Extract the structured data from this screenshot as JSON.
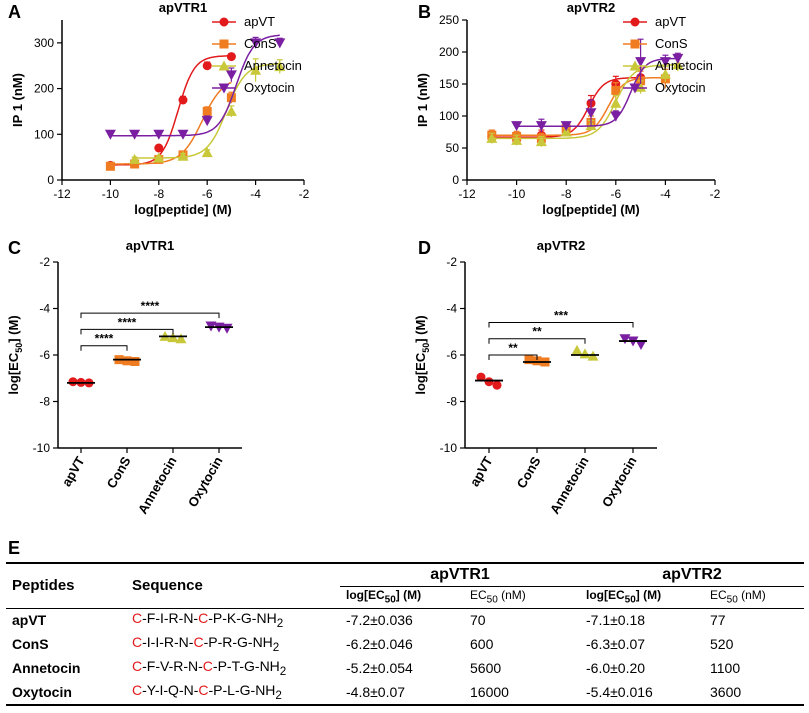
{
  "colors": {
    "apVT": "#e31a1c",
    "ConS": "#f07c22",
    "Annetocin": "#c8c83a",
    "Oxytocin": "#7b1fa2",
    "cys": "#e31a1c"
  },
  "panel_labels": [
    "A",
    "B",
    "C",
    "D",
    "E"
  ],
  "chart_data": [
    {
      "id": "A",
      "type": "scatter",
      "title": "apVTR1",
      "xlabel": "log[peptide] (M)",
      "ylabel": "IP 1 (nM)",
      "xlim": [
        -12,
        -2
      ],
      "ylim": [
        0,
        350
      ],
      "xticks": [
        -12,
        -10,
        -8,
        -6,
        -4,
        -2
      ],
      "yticks": [
        0,
        100,
        200,
        300
      ],
      "xtick_labels": [
        "-12",
        "-10",
        "-8",
        "-6",
        "-4",
        "-2"
      ],
      "ytick_labels": [
        "0",
        "100",
        "200",
        "300"
      ],
      "legend": [
        "apVT",
        "ConS",
        "Annetocin",
        "Oxytocin"
      ],
      "series": [
        {
          "name": "apVT",
          "marker": "circle",
          "x": [
            -10,
            -9,
            -8,
            -7,
            -6,
            -5
          ],
          "y": [
            32,
            38,
            70,
            175,
            250,
            270
          ],
          "err": [
            5,
            4,
            6,
            8,
            8,
            6
          ],
          "fit": {
            "bottom": 33,
            "top": 272,
            "ec50": -7.2,
            "hill": 1.3
          }
        },
        {
          "name": "ConS",
          "marker": "square",
          "x": [
            -10,
            -9,
            -8,
            -7,
            -6,
            -5
          ],
          "y": [
            30,
            35,
            45,
            55,
            150,
            180
          ],
          "err": [
            4,
            4,
            5,
            6,
            10,
            12
          ],
          "fit": {
            "bottom": 35,
            "top": 225,
            "ec50": -6.2,
            "hill": 1.0
          }
        },
        {
          "name": "Annetocin",
          "marker": "triangle-up",
          "x": [
            -9,
            -8,
            -7,
            -6,
            -5,
            -4,
            -3
          ],
          "y": [
            45,
            48,
            52,
            60,
            150,
            240,
            248
          ],
          "err": [
            5,
            5,
            6,
            6,
            12,
            25,
            15
          ],
          "fit": {
            "bottom": 48,
            "top": 255,
            "ec50": -5.2,
            "hill": 1.1
          }
        },
        {
          "name": "Oxytocin",
          "marker": "triangle-down",
          "x": [
            -10,
            -9,
            -8,
            -7,
            -6,
            -5,
            -4,
            -3
          ],
          "y": [
            100,
            100,
            100,
            100,
            130,
            230,
            300,
            300
          ],
          "err": [
            4,
            4,
            4,
            5,
            10,
            15,
            12,
            10
          ],
          "fit": {
            "bottom": 97,
            "top": 318,
            "ec50": -4.8,
            "hill": 1.2
          }
        }
      ]
    },
    {
      "id": "B",
      "type": "scatter",
      "title": "apVTR2",
      "xlabel": "log[peptide] (M)",
      "ylabel": "IP 1 (nM)",
      "xlim": [
        -12,
        -2
      ],
      "ylim": [
        0,
        250
      ],
      "xticks": [
        -12,
        -10,
        -8,
        -6,
        -4,
        -2
      ],
      "yticks": [
        0,
        50,
        100,
        150,
        200,
        250
      ],
      "xtick_labels": [
        "-12",
        "-10",
        "-8",
        "-6",
        "-4",
        "-2"
      ],
      "ytick_labels": [
        "0",
        "50",
        "100",
        "150",
        "200",
        "250"
      ],
      "legend": [
        "apVT",
        "ConS",
        "Annetocin",
        "Oxytocin"
      ],
      "series": [
        {
          "name": "apVT",
          "marker": "circle",
          "x": [
            -11,
            -10,
            -9,
            -8,
            -7,
            -6,
            -5
          ],
          "y": [
            68,
            63,
            70,
            83,
            120,
            150,
            160
          ],
          "err": [
            10,
            8,
            8,
            6,
            12,
            12,
            15
          ],
          "fit": {
            "bottom": 67,
            "top": 160,
            "ec50": -7.1,
            "hill": 1.4
          }
        },
        {
          "name": "ConS",
          "marker": "square",
          "x": [
            -11,
            -10,
            -9,
            -8,
            -7,
            -6,
            -5,
            -4
          ],
          "y": [
            70,
            68,
            65,
            80,
            90,
            140,
            155,
            158
          ],
          "err": [
            8,
            8,
            8,
            6,
            10,
            12,
            15,
            15
          ],
          "fit": {
            "bottom": 70,
            "top": 160,
            "ec50": -6.3,
            "hill": 1.4
          }
        },
        {
          "name": "Annetocin",
          "marker": "triangle-up",
          "x": [
            -11,
            -10,
            -9,
            -8,
            -7,
            -6,
            -5,
            -4,
            -3.5
          ],
          "y": [
            65,
            62,
            60,
            75,
            85,
            120,
            145,
            165,
            180
          ],
          "err": [
            8,
            8,
            8,
            6,
            8,
            12,
            10,
            12,
            10
          ],
          "fit": {
            "bottom": 65,
            "top": 180,
            "ec50": -6.0,
            "hill": 1.2
          }
        },
        {
          "name": "Oxytocin",
          "marker": "triangle-down",
          "x": [
            -10,
            -9,
            -8,
            -7,
            -6,
            -5,
            -4,
            -3.5
          ],
          "y": [
            85,
            85,
            85,
            105,
            100,
            185,
            185,
            190
          ],
          "err": [
            5,
            10,
            5,
            20,
            8,
            35,
            10,
            8
          ],
          "fit": {
            "bottom": 84,
            "top": 190,
            "ec50": -5.4,
            "hill": 1.5
          }
        }
      ]
    },
    {
      "id": "C",
      "type": "scatter",
      "title": "apVTR1",
      "ylabel_main": "log[EC",
      "ylabel_sub": "50",
      "ylabel_tail": "] (M)",
      "ylim": [
        -10,
        -2
      ],
      "yticks": [
        -10,
        -8,
        -6,
        -4,
        -2
      ],
      "ytick_labels": [
        "-10",
        "-8",
        "-6",
        "-4",
        "-2"
      ],
      "categories": [
        "apVT",
        "ConS",
        "Annetocin",
        "Oxytocin"
      ],
      "points": [
        [
          -7.15,
          -7.18,
          -7.2
        ],
        [
          -6.2,
          -6.25,
          -6.28
        ],
        [
          -5.2,
          -5.25,
          -5.3
        ],
        [
          -4.75,
          -4.8,
          -4.85
        ]
      ],
      "means": [
        -7.2,
        -6.2,
        -5.2,
        -4.8
      ],
      "markers": [
        "circle",
        "square",
        "triangle-up",
        "triangle-down"
      ],
      "significance": [
        {
          "from": 0,
          "to": 1,
          "label": "****",
          "y": -5.6
        },
        {
          "from": 0,
          "to": 2,
          "label": "****",
          "y": -4.9
        },
        {
          "from": 0,
          "to": 3,
          "label": "****",
          "y": -4.2
        }
      ]
    },
    {
      "id": "D",
      "type": "scatter",
      "title": "apVTR2",
      "ylabel_main": "log[EC",
      "ylabel_sub": "50",
      "ylabel_tail": "] (M)",
      "ylim": [
        -10,
        -2
      ],
      "yticks": [
        -10,
        -8,
        -6,
        -4,
        -2
      ],
      "ytick_labels": [
        "-10",
        "-8",
        "-6",
        "-4",
        "-2"
      ],
      "categories": [
        "apVT",
        "ConS",
        "Annetocin",
        "Oxytocin"
      ],
      "points": [
        [
          -6.95,
          -7.15,
          -7.3
        ],
        [
          -6.2,
          -6.25,
          -6.3
        ],
        [
          -5.8,
          -5.95,
          -6.05
        ],
        [
          -5.3,
          -5.4,
          -5.55
        ]
      ],
      "means": [
        -7.1,
        -6.3,
        -6.0,
        -5.4
      ],
      "markers": [
        "circle",
        "square",
        "triangle-up",
        "triangle-down"
      ],
      "significance": [
        {
          "from": 0,
          "to": 1,
          "label": "**",
          "y": -6.0
        },
        {
          "from": 0,
          "to": 2,
          "label": "**",
          "y": -5.3
        },
        {
          "from": 0,
          "to": 3,
          "label": "***",
          "y": -4.6
        }
      ]
    }
  ],
  "table": {
    "head_peptides": "Peptides",
    "head_sequence": "Sequence",
    "receptor1": "apVTR1",
    "receptor2": "apVTR2",
    "log_ec50_main": "log[EC",
    "log_ec50_sub": "50",
    "log_ec50_tail": "] (M)",
    "ec50_main": "EC",
    "ec50_sub": "50",
    "ec50_tail": " (nM)",
    "nh2_main": "NH",
    "nh2_sub": "2",
    "rows": [
      {
        "peptide": "apVT",
        "seq1": "C",
        "seq2": "-F-I-R-N-",
        "seq3": "C",
        "seq4": "-P-K-G-",
        "r1_log": "-7.2±0.036",
        "r1_ec": "70",
        "r2_log": "-7.1±0.18",
        "r2_ec": "77"
      },
      {
        "peptide": "ConS",
        "seq1": "C",
        "seq2": "-I-I-R-N-",
        "seq3": "C",
        "seq4": "-P-R-G-",
        "r1_log": "-6.2±0.046",
        "r1_ec": "600",
        "r2_log": "-6.3±0.07",
        "r2_ec": "520"
      },
      {
        "peptide": "Annetocin",
        "seq1": "C",
        "seq2": "-F-V-R-N-",
        "seq3": "C",
        "seq4": "-P-T-G-",
        "r1_log": "-5.2±0.054",
        "r1_ec": "5600",
        "r2_log": "-6.0±0.20",
        "r2_ec": "1100"
      },
      {
        "peptide": "Oxytocin",
        "seq1": "C",
        "seq2": "-Y-I-Q-N-",
        "seq3": "C",
        "seq4": "-P-L-G-",
        "r1_log": "-4.8±0.07",
        "r1_ec": "16000",
        "r2_log": "-5.4±0.016",
        "r2_ec": "3600"
      }
    ]
  }
}
